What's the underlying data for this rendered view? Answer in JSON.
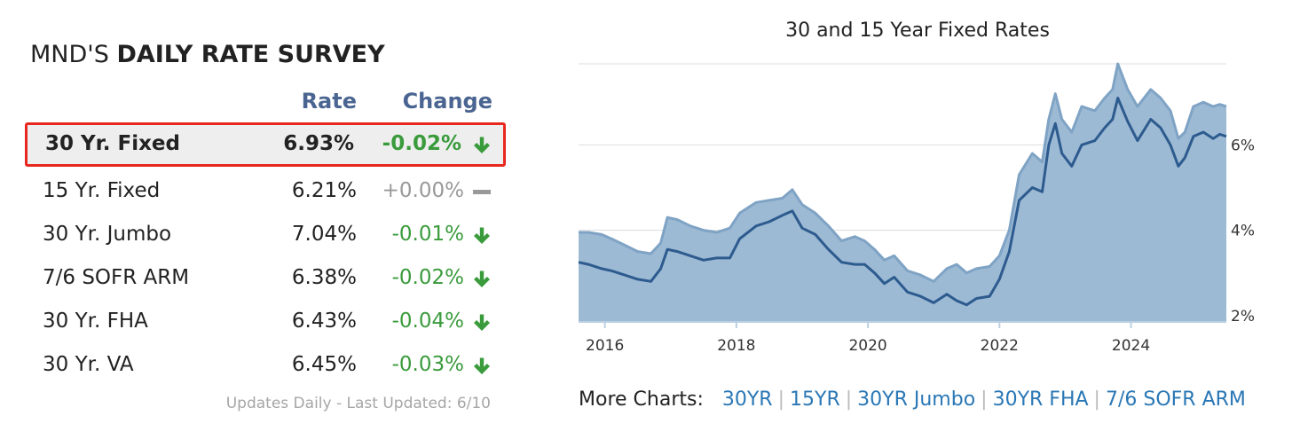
{
  "survey": {
    "title_prefix": "MND'S",
    "title_bold": "DAILY RATE SURVEY",
    "col_rate": "Rate",
    "col_change": "Change",
    "rows": [
      {
        "name": "30 Yr. Fixed",
        "rate": "6.93%",
        "change": "-0.02%",
        "direction": "down",
        "highlighted": true
      },
      {
        "name": "15 Yr. Fixed",
        "rate": "6.21%",
        "change": "+0.00%",
        "direction": "flat",
        "highlighted": false
      },
      {
        "name": "30 Yr. Jumbo",
        "rate": "7.04%",
        "change": "-0.01%",
        "direction": "down",
        "highlighted": false
      },
      {
        "name": "7/6 SOFR ARM",
        "rate": "6.38%",
        "change": "-0.02%",
        "direction": "down",
        "highlighted": false
      },
      {
        "name": "30 Yr. FHA",
        "rate": "6.43%",
        "change": "-0.04%",
        "direction": "down",
        "highlighted": false
      },
      {
        "name": "30 Yr. VA",
        "rate": "6.45%",
        "change": "-0.03%",
        "direction": "down",
        "highlighted": false
      }
    ],
    "footer": "Updates Daily - Last Updated: 6/10",
    "colors": {
      "header": "#4a6591",
      "down": "#3a9b3c",
      "flat": "#999999",
      "highlight_border": "#e8281e"
    }
  },
  "more_charts": {
    "label": "More Charts:",
    "links": [
      "30YR",
      "15YR",
      "30YR Jumbo",
      "30YR FHA",
      "7/6 SOFR ARM"
    ]
  },
  "chart_data": {
    "type": "area",
    "title": "30 and 15 Year Fixed Rates",
    "xlabel": "",
    "ylabel": "",
    "xlim": [
      2015.6,
      2025.45
    ],
    "ylim": [
      1.85,
      7.9
    ],
    "x_ticks": [
      2016,
      2018,
      2020,
      2022,
      2024
    ],
    "y_ticks": [
      2,
      4,
      6
    ],
    "y_tick_labels": [
      "2%",
      "4%",
      "6%"
    ],
    "grid": "horizontal",
    "legend": "none",
    "series": [
      {
        "color": "#7fa3c4",
        "fill": "#9dbad5",
        "points": [
          [
            2015.6,
            3.95
          ],
          [
            2015.75,
            3.95
          ],
          [
            2015.95,
            3.9
          ],
          [
            2016.1,
            3.8
          ],
          [
            2016.3,
            3.65
          ],
          [
            2016.5,
            3.5
          ],
          [
            2016.7,
            3.45
          ],
          [
            2016.85,
            3.7
          ],
          [
            2016.95,
            4.3
          ],
          [
            2017.1,
            4.25
          ],
          [
            2017.3,
            4.1
          ],
          [
            2017.5,
            4.0
          ],
          [
            2017.7,
            3.95
          ],
          [
            2017.9,
            4.05
          ],
          [
            2018.05,
            4.4
          ],
          [
            2018.3,
            4.65
          ],
          [
            2018.5,
            4.7
          ],
          [
            2018.7,
            4.75
          ],
          [
            2018.85,
            4.95
          ],
          [
            2019.0,
            4.6
          ],
          [
            2019.2,
            4.4
          ],
          [
            2019.4,
            4.1
          ],
          [
            2019.6,
            3.75
          ],
          [
            2019.8,
            3.85
          ],
          [
            2019.95,
            3.75
          ],
          [
            2020.1,
            3.55
          ],
          [
            2020.25,
            3.3
          ],
          [
            2020.4,
            3.4
          ],
          [
            2020.6,
            3.05
          ],
          [
            2020.8,
            2.95
          ],
          [
            2021.0,
            2.8
          ],
          [
            2021.2,
            3.1
          ],
          [
            2021.35,
            3.2
          ],
          [
            2021.5,
            3.0
          ],
          [
            2021.65,
            3.1
          ],
          [
            2021.85,
            3.15
          ],
          [
            2022.0,
            3.4
          ],
          [
            2022.15,
            4.0
          ],
          [
            2022.3,
            5.3
          ],
          [
            2022.5,
            5.8
          ],
          [
            2022.65,
            5.6
          ],
          [
            2022.75,
            6.6
          ],
          [
            2022.85,
            7.2
          ],
          [
            2022.95,
            6.6
          ],
          [
            2023.1,
            6.3
          ],
          [
            2023.25,
            6.9
          ],
          [
            2023.45,
            6.8
          ],
          [
            2023.6,
            7.1
          ],
          [
            2023.72,
            7.3
          ],
          [
            2023.8,
            7.9
          ],
          [
            2023.95,
            7.3
          ],
          [
            2024.1,
            6.9
          ],
          [
            2024.3,
            7.3
          ],
          [
            2024.45,
            7.1
          ],
          [
            2024.6,
            6.8
          ],
          [
            2024.72,
            6.15
          ],
          [
            2024.82,
            6.3
          ],
          [
            2024.95,
            6.9
          ],
          [
            2025.1,
            7.0
          ],
          [
            2025.25,
            6.9
          ],
          [
            2025.35,
            6.95
          ],
          [
            2025.45,
            6.9
          ]
        ]
      },
      {
        "color": "#2d5b8e",
        "fill": "#9dbad5",
        "points": [
          [
            2015.6,
            3.25
          ],
          [
            2015.75,
            3.2
          ],
          [
            2015.95,
            3.1
          ],
          [
            2016.1,
            3.05
          ],
          [
            2016.3,
            2.95
          ],
          [
            2016.5,
            2.85
          ],
          [
            2016.7,
            2.8
          ],
          [
            2016.85,
            3.1
          ],
          [
            2016.95,
            3.55
          ],
          [
            2017.1,
            3.5
          ],
          [
            2017.3,
            3.4
          ],
          [
            2017.5,
            3.3
          ],
          [
            2017.7,
            3.35
          ],
          [
            2017.9,
            3.35
          ],
          [
            2018.05,
            3.8
          ],
          [
            2018.3,
            4.1
          ],
          [
            2018.5,
            4.2
          ],
          [
            2018.7,
            4.35
          ],
          [
            2018.85,
            4.45
          ],
          [
            2019.0,
            4.05
          ],
          [
            2019.2,
            3.9
          ],
          [
            2019.4,
            3.55
          ],
          [
            2019.6,
            3.25
          ],
          [
            2019.8,
            3.2
          ],
          [
            2019.95,
            3.2
          ],
          [
            2020.1,
            3.0
          ],
          [
            2020.25,
            2.75
          ],
          [
            2020.4,
            2.9
          ],
          [
            2020.6,
            2.55
          ],
          [
            2020.8,
            2.45
          ],
          [
            2021.0,
            2.3
          ],
          [
            2021.2,
            2.5
          ],
          [
            2021.35,
            2.35
          ],
          [
            2021.5,
            2.25
          ],
          [
            2021.65,
            2.4
          ],
          [
            2021.85,
            2.45
          ],
          [
            2022.0,
            2.85
          ],
          [
            2022.15,
            3.5
          ],
          [
            2022.3,
            4.7
          ],
          [
            2022.5,
            5.0
          ],
          [
            2022.65,
            4.9
          ],
          [
            2022.75,
            6.0
          ],
          [
            2022.85,
            6.5
          ],
          [
            2022.95,
            5.8
          ],
          [
            2023.1,
            5.5
          ],
          [
            2023.25,
            6.0
          ],
          [
            2023.45,
            6.1
          ],
          [
            2023.6,
            6.4
          ],
          [
            2023.72,
            6.6
          ],
          [
            2023.8,
            7.1
          ],
          [
            2023.95,
            6.55
          ],
          [
            2024.1,
            6.1
          ],
          [
            2024.3,
            6.6
          ],
          [
            2024.45,
            6.4
          ],
          [
            2024.6,
            6.0
          ],
          [
            2024.72,
            5.5
          ],
          [
            2024.82,
            5.7
          ],
          [
            2024.95,
            6.2
          ],
          [
            2025.1,
            6.3
          ],
          [
            2025.25,
            6.15
          ],
          [
            2025.35,
            6.25
          ],
          [
            2025.45,
            6.2
          ]
        ]
      }
    ]
  }
}
